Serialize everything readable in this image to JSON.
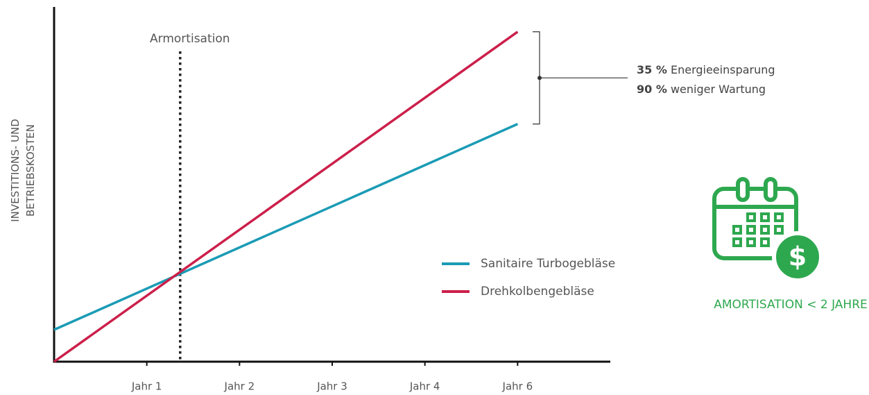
{
  "chart_data": {
    "type": "line",
    "ylabel": [
      "INVESTITIONS- UND",
      "BETRIEBSKOSTEN"
    ],
    "xlim": [
      0,
      6
    ],
    "ylim": [
      0,
      100
    ],
    "xticks": [
      {
        "value": 1,
        "label": "Jahr 1"
      },
      {
        "value": 2,
        "label": "Jahr 2"
      },
      {
        "value": 3,
        "label": "Jahr 3"
      },
      {
        "value": 4,
        "label": "Jahr 4"
      },
      {
        "value": 5,
        "label": "Jahr 6"
      }
    ],
    "series": [
      {
        "name": "Sanitaire Turbogebläse",
        "color": "#1a9bb5",
        "x": [
          0,
          5
        ],
        "values": [
          9,
          67
        ]
      },
      {
        "name": "Drehkolbengebläse",
        "color": "#cc1f4a",
        "x": [
          0,
          5
        ],
        "values": [
          0,
          93
        ]
      }
    ],
    "annotations": [
      {
        "text": "Armortisation",
        "x": 1.36
      }
    ],
    "savings": [
      {
        "value": "35 %",
        "text": "Energieeinsparung"
      },
      {
        "value": "90 %",
        "text": "weniger Wartung"
      }
    ],
    "badge": "AMORTISATION < 2 JAHRE",
    "badge_color": "#2ea84f"
  }
}
